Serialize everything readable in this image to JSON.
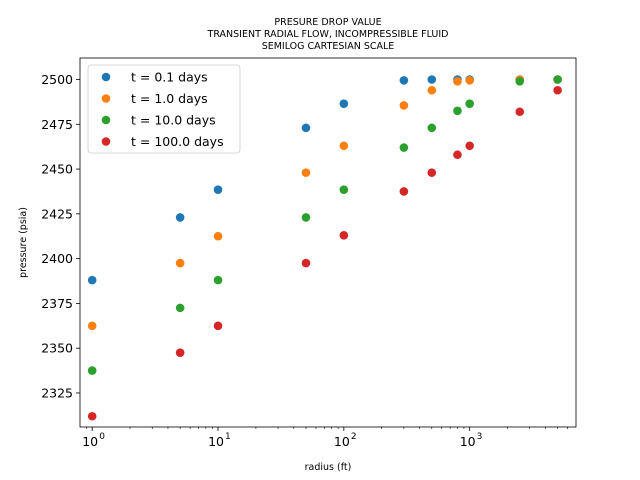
{
  "chart_data": {
    "type": "scatter",
    "title": [
      "PRESURE DROP VALUE",
      "TRANSIENT RADIAL FLOW, INCOMPRESSIBLE FLUID",
      "SEMILOG CARTESIAN SCALE"
    ],
    "xlabel": "radius (ft)",
    "ylabel": "pressure (psia)",
    "xscale": "log",
    "xlim": [
      0.8,
      7000
    ],
    "ylim": [
      2306,
      2512
    ],
    "x_ticks": [
      {
        "value": 1,
        "base": "10",
        "exp": "0"
      },
      {
        "value": 10,
        "base": "10",
        "exp": "1"
      },
      {
        "value": 100,
        "base": "10",
        "exp": "2"
      },
      {
        "value": 1000,
        "base": "10",
        "exp": "3"
      }
    ],
    "y_ticks": [
      2325,
      2350,
      2375,
      2400,
      2425,
      2450,
      2475,
      2500
    ],
    "grid": false,
    "legend_position": "top-left",
    "x": [
      1,
      5,
      10,
      50,
      100,
      300,
      500,
      800,
      1000,
      2500,
      5000
    ],
    "series": [
      {
        "name": "t = 0.1 days",
        "color": "#1f77b4",
        "values": [
          2388,
          2423,
          2438.5,
          2473,
          2486.5,
          2499.5,
          2500,
          2500,
          2500,
          2500,
          2500
        ]
      },
      {
        "name": "t = 1.0 days",
        "color": "#ff7f0e",
        "values": [
          2362.5,
          2397.5,
          2412.5,
          2448,
          2463,
          2485.5,
          2494,
          2499,
          2499.5,
          2500,
          2500
        ]
      },
      {
        "name": "t = 10.0 days",
        "color": "#2ca02c",
        "values": [
          2337.5,
          2372.5,
          2388,
          2423,
          2438.5,
          2462,
          2473,
          2482.5,
          2486.5,
          2499,
          2500
        ]
      },
      {
        "name": "t = 100.0 days",
        "color": "#d62728",
        "values": [
          2312,
          2347.5,
          2362.5,
          2397.5,
          2413,
          2437.5,
          2448,
          2458,
          2463,
          2482,
          2494
        ]
      }
    ]
  }
}
